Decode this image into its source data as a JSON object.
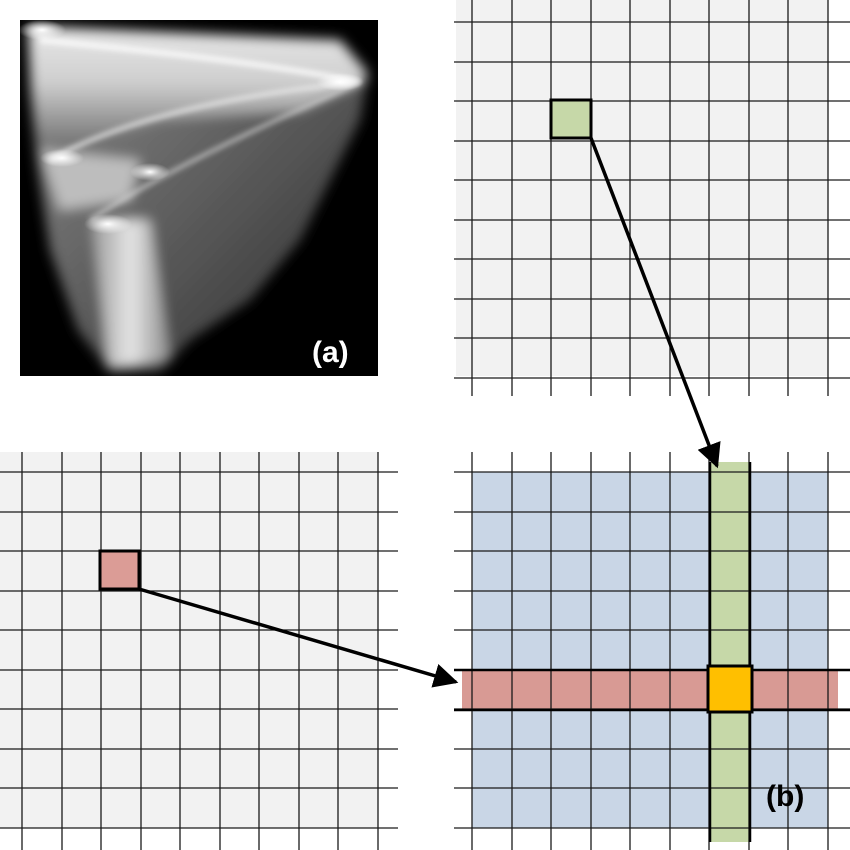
{
  "panels": {
    "a": {
      "label": "(a)",
      "label_color": "#ffffff",
      "background": "#000000"
    },
    "b": {
      "label": "(b)",
      "label_color": "#000000"
    }
  },
  "grids": {
    "line_color": "#1a1a1a",
    "plain_fill": "#f2f2f2",
    "result_fill": "#c9d6e6"
  },
  "highlights": {
    "source_cell_green": "#c6d8a8",
    "source_cell_red": "#db9c96",
    "column_band": "#c6d8a8",
    "row_band": "#d89a94",
    "intersection_cell": "#ffbf00"
  },
  "arrows": [
    {
      "from": "green-source-cell",
      "to": "column-band"
    },
    {
      "from": "red-source-cell",
      "to": "row-band"
    }
  ]
}
